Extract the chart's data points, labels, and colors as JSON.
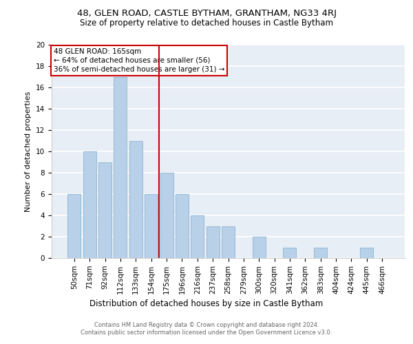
{
  "title": "48, GLEN ROAD, CASTLE BYTHAM, GRANTHAM, NG33 4RJ",
  "subtitle": "Size of property relative to detached houses in Castle Bytham",
  "xlabel": "Distribution of detached houses by size in Castle Bytham",
  "ylabel": "Number of detached properties",
  "categories": [
    "50sqm",
    "71sqm",
    "92sqm",
    "112sqm",
    "133sqm",
    "154sqm",
    "175sqm",
    "196sqm",
    "216sqm",
    "237sqm",
    "258sqm",
    "279sqm",
    "300sqm",
    "320sqm",
    "341sqm",
    "362sqm",
    "383sqm",
    "404sqm",
    "424sqm",
    "445sqm",
    "466sqm"
  ],
  "values": [
    6,
    10,
    9,
    17,
    11,
    6,
    8,
    6,
    4,
    3,
    3,
    0,
    2,
    0,
    1,
    0,
    1,
    0,
    0,
    1,
    0
  ],
  "bar_color": "#b8d0e8",
  "bar_edge_color": "#8ab4d4",
  "background_color": "#e8eef6",
  "grid_color": "#ffffff",
  "vline_x": 5.5,
  "vline_color": "#cc0000",
  "annotation_text": "48 GLEN ROAD: 165sqm\n← 64% of detached houses are smaller (56)\n36% of semi-detached houses are larger (31) →",
  "annotation_box_color": "#ffffff",
  "annotation_box_edge": "#cc0000",
  "footnote": "Contains HM Land Registry data © Crown copyright and database right 2024.\nContains public sector information licensed under the Open Government Licence v3.0.",
  "ylim": [
    0,
    20
  ],
  "yticks": [
    0,
    2,
    4,
    6,
    8,
    10,
    12,
    14,
    16,
    18,
    20
  ],
  "title_fontsize": 9.5,
  "subtitle_fontsize": 8.5,
  "ylabel_fontsize": 8,
  "xlabel_fontsize": 8.5,
  "tick_fontsize": 7.5,
  "annot_fontsize": 7.5,
  "footnote_fontsize": 6.0,
  "footnote_color": "#666666"
}
